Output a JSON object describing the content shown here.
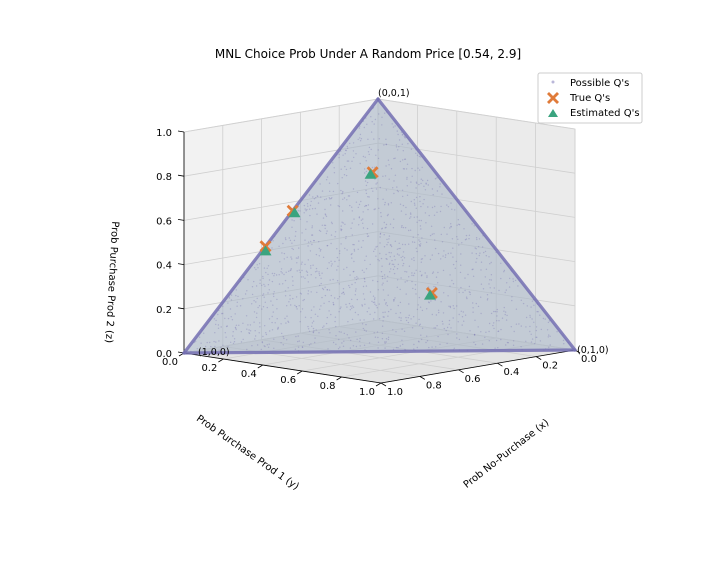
{
  "chart_data": {
    "type": "scatter",
    "projection": "3d",
    "title": "MNL Choice Prob Under A Random Price [0.54, 2.9]",
    "xlabel": "Prob No-Purchase (x)",
    "ylabel": "Prob Purchase Prod 1 (y)",
    "zlabel": "Prob Purchase Prod 2 (z)",
    "xlim": [
      0,
      1
    ],
    "ylim": [
      0,
      1
    ],
    "zlim": [
      0,
      1
    ],
    "x_ticks": [
      "0.0",
      "0.2",
      "0.4",
      "0.6",
      "0.8",
      "1.0"
    ],
    "y_ticks": [
      "0.0",
      "0.2",
      "0.4",
      "0.6",
      "0.8",
      "1.0"
    ],
    "z_ticks": [
      "0.0",
      "0.2",
      "0.4",
      "0.6",
      "0.8",
      "1.0"
    ],
    "grid": true,
    "legend_position": "top-right",
    "corner_annotations": [
      {
        "text": "(0,0,1)",
        "point": [
          0,
          0,
          1
        ]
      },
      {
        "text": "(0,1,0)",
        "point": [
          0,
          1,
          0
        ]
      },
      {
        "text": "(1,0,0)",
        "point": [
          1,
          0,
          0
        ]
      }
    ],
    "series": [
      {
        "name": "Possible Q's",
        "marker": "dot",
        "color": "#7570b3",
        "description_values": "points filling the simplex x+y+z=1",
        "sample_points": []
      },
      {
        "name": "True Q's",
        "marker": "X",
        "color": "#e07b39",
        "points": [
          [
            0.44,
            0.0,
            0.56
          ],
          [
            0.58,
            0.0,
            0.42
          ],
          [
            0.16,
            0.13,
            0.71
          ],
          [
            0.25,
            0.52,
            0.23
          ]
        ]
      },
      {
        "name": "Estimated Q's",
        "marker": "triangle",
        "color": "#3aa47f",
        "points": [
          [
            0.44,
            0.01,
            0.55
          ],
          [
            0.59,
            0.01,
            0.4
          ],
          [
            0.17,
            0.13,
            0.7
          ],
          [
            0.26,
            0.52,
            0.22
          ]
        ]
      }
    ]
  }
}
